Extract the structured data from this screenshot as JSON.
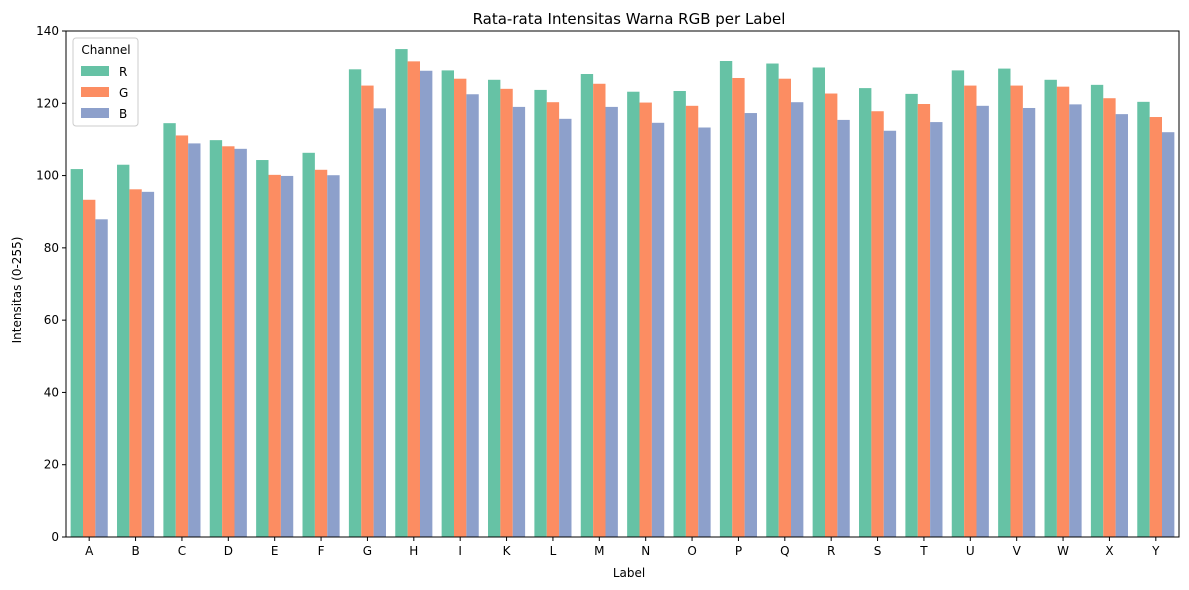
{
  "chart_data": {
    "type": "bar",
    "title": "Rata-rata Intensitas Warna RGB per Label",
    "xlabel": "Label",
    "ylabel": "Intensitas (0-255)",
    "ylim": [
      0,
      140
    ],
    "yticks": [
      0,
      20,
      40,
      60,
      80,
      100,
      120,
      140
    ],
    "grid": false,
    "legend": {
      "title": "Channel",
      "placement": "top-left"
    },
    "categories": [
      "A",
      "B",
      "C",
      "D",
      "E",
      "F",
      "G",
      "H",
      "I",
      "K",
      "L",
      "M",
      "N",
      "O",
      "P",
      "Q",
      "R",
      "S",
      "T",
      "U",
      "V",
      "W",
      "X",
      "Y"
    ],
    "series": [
      {
        "name": "R",
        "color": "#66c2a5",
        "values": [
          101.8,
          103.0,
          114.5,
          109.8,
          104.3,
          106.3,
          129.4,
          135.0,
          129.1,
          126.5,
          123.7,
          128.1,
          123.2,
          123.4,
          131.7,
          131.0,
          129.9,
          124.2,
          122.6,
          129.1,
          129.6,
          126.5,
          125.1,
          120.4
        ]
      },
      {
        "name": "G",
        "color": "#fc8d62",
        "values": [
          93.3,
          96.2,
          111.1,
          108.1,
          100.2,
          101.6,
          124.9,
          131.6,
          126.8,
          124.0,
          120.3,
          125.4,
          120.2,
          119.3,
          127.0,
          126.8,
          122.7,
          117.8,
          119.8,
          124.9,
          124.9,
          124.6,
          121.4,
          116.2
        ]
      },
      {
        "name": "B",
        "color": "#8da0cb",
        "values": [
          87.9,
          95.5,
          108.9,
          107.4,
          99.9,
          100.1,
          118.6,
          129.0,
          122.5,
          119.0,
          115.7,
          119.0,
          114.6,
          113.3,
          117.3,
          120.3,
          115.4,
          112.4,
          114.8,
          119.3,
          118.7,
          119.7,
          117.0,
          112.0
        ]
      }
    ]
  }
}
